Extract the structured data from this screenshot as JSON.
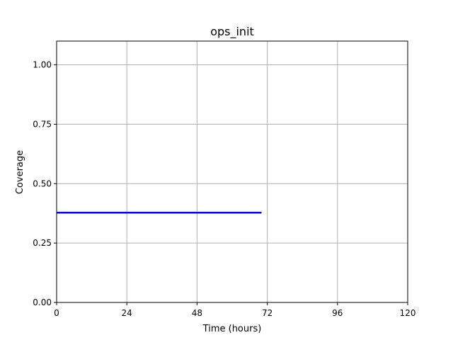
{
  "chart_data": {
    "type": "line",
    "title": "ops_init",
    "xlabel": "Time (hours)",
    "ylabel": "Coverage",
    "xlim": [
      0,
      120
    ],
    "ylim": [
      0,
      1.1
    ],
    "xticks": [
      0,
      24,
      48,
      72,
      96,
      120
    ],
    "xtick_labels": [
      "0",
      "24",
      "48",
      "72",
      "96",
      "120"
    ],
    "yticks": [
      0,
      0.25,
      0.5,
      0.75,
      1.0
    ],
    "ytick_labels": [
      "0.00",
      "0.25",
      "0.50",
      "0.75",
      "1.00"
    ],
    "grid": true,
    "series": [
      {
        "color": "#0000ff",
        "x": [
          0,
          70
        ],
        "y": [
          0.378,
          0.378
        ]
      }
    ]
  }
}
